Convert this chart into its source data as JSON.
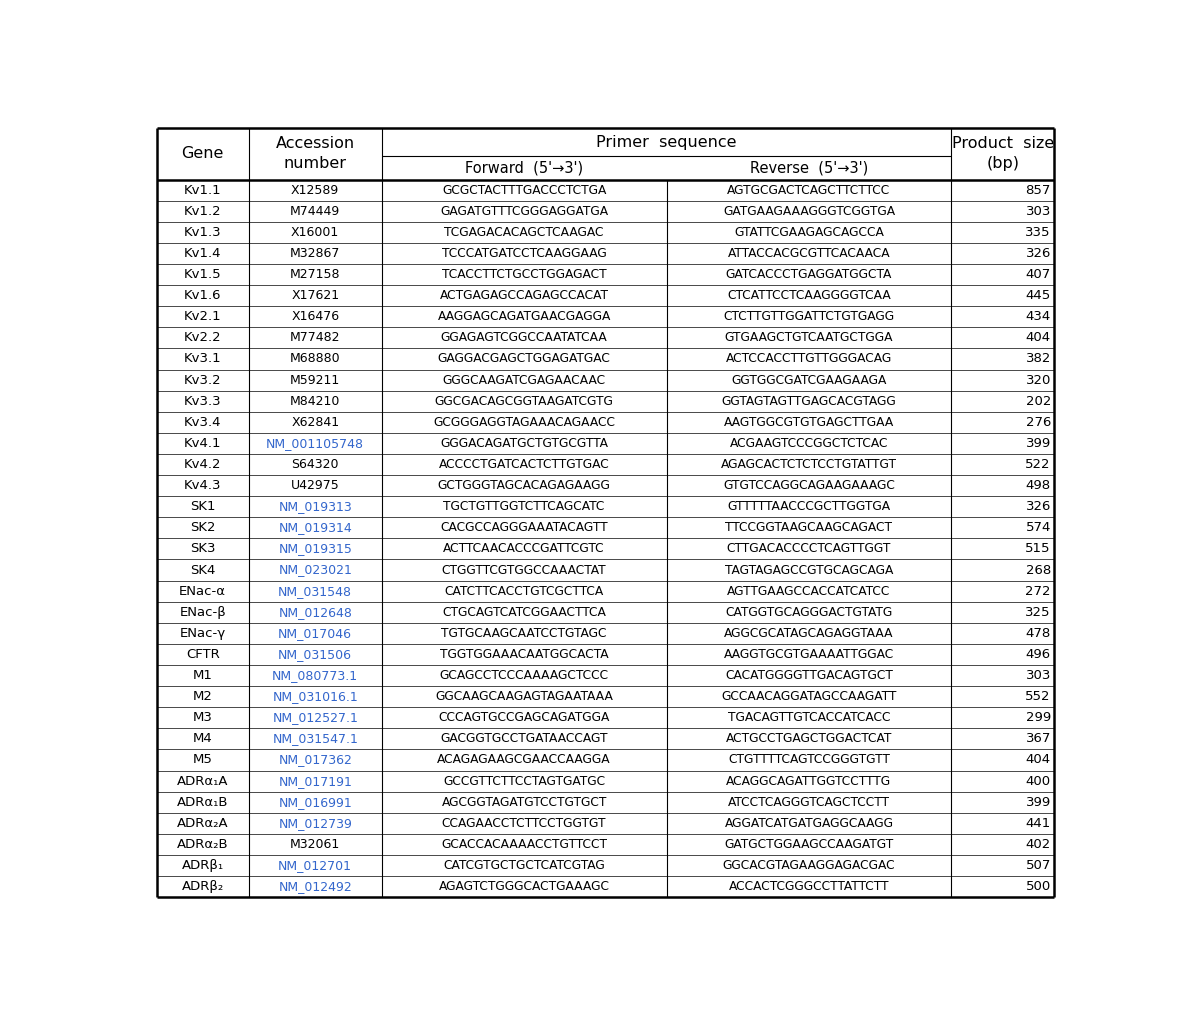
{
  "rows": [
    [
      "Kv1.1",
      "X12589",
      "GCGCTACTTTGACCCTCTGA",
      "AGTGCGACTCAGCTTCTTCC",
      "857"
    ],
    [
      "Kv1.2",
      "M74449",
      "GAGATGTTTCGGGAGGATGA",
      "GATGAAGAAAGGGTCGGTGA",
      "303"
    ],
    [
      "Kv1.3",
      "X16001",
      "TCGAGACACAGCTCAAGAC",
      "GTATTCGAAGAGCAGCCA",
      "335"
    ],
    [
      "Kv1.4",
      "M32867",
      "TCCCATGATCCTCAAGGAAG",
      "ATTACCACGCGTTCACAACA",
      "326"
    ],
    [
      "Kv1.5",
      "M27158",
      "TCACCTTCTGCCTGGAGACT",
      "GATCACCCTGAGGATGGCTA",
      "407"
    ],
    [
      "Kv1.6",
      "X17621",
      "ACTGAGAGCCAGAGCCACAT",
      "CTCATTCCTCAAGGGGTCAA",
      "445"
    ],
    [
      "Kv2.1",
      "X16476",
      "AAGGAGCAGATGAACGAGGA",
      "CTCTTGTTGGATTCTGTGAGG",
      "434"
    ],
    [
      "Kv2.2",
      "M77482",
      "GGAGAGTCGGCCAATATCAA",
      "GTGAAGCTGTCAATGCTGGA",
      "404"
    ],
    [
      "Kv3.1",
      "M68880",
      "GAGGACGAGCTGGAGATGAC",
      "ACTCCACCTTGTTGGGACAG",
      "382"
    ],
    [
      "Kv3.2",
      "M59211",
      "GGGCAAGATCGAGAACAAC",
      "GGTGGCGATCGAAGAAGA",
      "320"
    ],
    [
      "Kv3.3",
      "M84210",
      "GGCGACAGCGGTAAGATCGTG",
      "GGTAGTAGTTGAGCACGTAGG",
      "202"
    ],
    [
      "Kv3.4",
      "X62841",
      "GCGGGAGGTAGAAACAGAACC",
      "AAGTGGCGTGTGAGCTTGAA",
      "276"
    ],
    [
      "Kv4.1",
      "NM_001105748",
      "GGGACAGATGCTGTGCGTTA",
      "ACGAAGTCCCGGCTCTCAC",
      "399"
    ],
    [
      "Kv4.2",
      "S64320",
      "ACCCCTGATCACTCTTGTGAC",
      "AGAGCACTCTCTCCTGTATTGT",
      "522"
    ],
    [
      "Kv4.3",
      "U42975",
      "GCTGGGTAGCACAGAGAAGG",
      "GTGTCCAGGCAGAAGAAAGC",
      "498"
    ],
    [
      "SK1",
      "NM_019313",
      "TGCTGTTGGTCTTCAGCATC",
      "GTTTTTAACCCGCTTGGTGA",
      "326"
    ],
    [
      "SK2",
      "NM_019314",
      "CACGCCAGGGAAATACAGTT",
      "TTCCGGTAAGCAAGCAGACT",
      "574"
    ],
    [
      "SK3",
      "NM_019315",
      "ACTTCAACACCCGATTCGTC",
      "CTTGACACCCCTCAGTTGGT",
      "515"
    ],
    [
      "SK4",
      "NM_023021",
      "CTGGTTCGTGGCCAAACTAT",
      "TAGTAGAGCCGTGCAGCAGA",
      "268"
    ],
    [
      "ENac-α",
      "NM_031548",
      "CATCTTCACCTGTCGCTTCA",
      "AGTTGAAGCCACCATCATCC",
      "272"
    ],
    [
      "ENac-β",
      "NM_012648",
      "CTGCAGTCATCGGAACTTCA",
      "CATGGTGCAGGGACTGTATG",
      "325"
    ],
    [
      "ENac-γ",
      "NM_017046",
      "TGTGCAAGCAATCCTGTAGC",
      "AGGCGCATAGCAGAGGTAAA",
      "478"
    ],
    [
      "CFTR",
      "NM_031506",
      "TGGTGGAAACAATGGCACTA",
      "AAGGTGCGTGAAAATTGGAC",
      "496"
    ],
    [
      "M1",
      "NM_080773.1",
      "GCAGCCTCCCAAAAGCTCCC",
      "CACATGGGGTTGACAGTGCT",
      "303"
    ],
    [
      "M2",
      "NM_031016.1",
      "GGCAAGCAAGAGTAGAATAAA",
      "GCCAACAGGATAGCCAAGATT",
      "552"
    ],
    [
      "M3",
      "NM_012527.1",
      "CCCAGTGCCGAGCAGATGGA",
      "TGACAGTTGTCACCATCACC",
      "299"
    ],
    [
      "M4",
      "NM_031547.1",
      "GACGGTGCCTGATAACCAGT",
      "ACTGCCTGAGCTGGACTCAT",
      "367"
    ],
    [
      "M5",
      "NM_017362",
      "ACAGAGAAGCGAACCAAGGA",
      "CTGTTTTCAGTCCGGGTGTT",
      "404"
    ],
    [
      "ADRα₁A",
      "NM_017191",
      "GCCGTTCTTCCTAGTGATGC",
      "ACAGGCAGATTGGTCCTTTG",
      "400"
    ],
    [
      "ADRα₁B",
      "NM_016991",
      "AGCGGTAGATGTCCTGTGCT",
      "ATCCTCAGGGTCAGCTCCTT",
      "399"
    ],
    [
      "ADRα₂A",
      "NM_012739",
      "CCAGAACCTCTTCCTGGTGT",
      "AGGATCATGATGAGGCAAGG",
      "441"
    ],
    [
      "ADRα₂B",
      "M32061",
      "GCACCACAAAACCTGTTCCT",
      "GATGCTGGAAGCCAAGATGT",
      "402"
    ],
    [
      "ADRβ₁",
      "NM_012701",
      "CATCGTGCTGCTCATCGTAG",
      "GGCACGTAGAAGGAGACGAC",
      "507"
    ],
    [
      "ADRβ₂",
      "NM_012492",
      "AGAGTCTGGGCACTGAAAGC",
      "ACCACTCGGGCCTTATTCTT",
      "500"
    ]
  ],
  "gene_col_labels": [
    "Kv1.1",
    "Kv1.2",
    "Kv1.3",
    "Kv1.4",
    "Kv1.5",
    "Kv1.6",
    "Kv2.1",
    "Kv2.2",
    "Kv3.1",
    "Kv3.2",
    "Kv3.3",
    "Kv3.4",
    "Kv4.1",
    "Kv4.2",
    "Kv4.3",
    "SK1",
    "SK2",
    "SK3",
    "SK4",
    "ENac-α",
    "ENac-β",
    "ENac-γ",
    "CFTR",
    "M1",
    "M2",
    "M3",
    "M4",
    "M5",
    "ADRα₁A",
    "ADRα₁B",
    "ADRα₂A",
    "ADRα₂B",
    "ADRβ₁",
    "ADRβ₂"
  ],
  "blue_accession": [
    "NM_001105748",
    "NM_019313",
    "NM_019314",
    "NM_019315",
    "NM_023021",
    "NM_031548",
    "NM_012648",
    "NM_017046",
    "NM_031506",
    "NM_080773.1",
    "NM_031016.1",
    "NM_012527.1",
    "NM_031547.1",
    "NM_017362",
    "NM_017191",
    "NM_016991",
    "NM_012739",
    "NM_012701",
    "NM_012492"
  ],
  "bg_color": "#ffffff",
  "border_color": "#000000",
  "text_color": "#000000",
  "blue_color": "#3366cc"
}
